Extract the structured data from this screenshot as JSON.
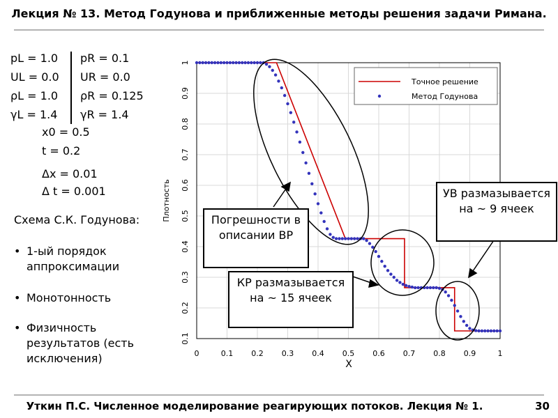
{
  "slide": {
    "title": "Лекция № 13. Метод Годунова и приближенные методы решения задачи Римана.",
    "footer": "Уткин П.С. Численное моделирование реагирующих потоков. Лекция № 1.",
    "page_number": "30"
  },
  "params": {
    "left": [
      "pL = 1.0",
      "UL = 0.0",
      "ρL = 1.0",
      "γL = 1.4"
    ],
    "right": [
      "pR = 0.1",
      "UR = 0.0",
      "ρR = 0.125",
      "γR = 1.4"
    ],
    "x0": "x0 = 0.5",
    "t": "t = 0.2",
    "dx": "Δx = 0.01",
    "dt": "Δ t = 0.001"
  },
  "scheme": {
    "title": "Схема С.К. Годунова:",
    "bullets": [
      "1-ый порядок аппроксимации",
      "Монотонность",
      "Физичность результатов (есть исключения)"
    ]
  },
  "callouts": {
    "rarefaction": "Погрешности в описании ВР",
    "contact": "КР размазывается на ~ 15 ячеек",
    "shock": "УВ размазывается на ~ 9 ячеек"
  },
  "colors": {
    "exact": "#cc0000",
    "godunov": "#3333bb",
    "rule": "#b3b3b3"
  },
  "chart_data": {
    "type": "line",
    "xlabel": "X",
    "ylabel": "Плотность",
    "xlim": [
      0,
      1
    ],
    "ylim": [
      0.1,
      1
    ],
    "x_ticks": [
      "0",
      "0.1",
      "0.2",
      "0.3",
      "0.4",
      "0.5",
      "0.6",
      "0.7",
      "0.8",
      "0.9",
      "1"
    ],
    "y_ticks": [
      "0.1",
      "0.2",
      "0.3",
      "0.4",
      "0.5",
      "0.6",
      "0.7",
      "0.8",
      "0.9",
      "1"
    ],
    "grid": true,
    "legend_position": "top-right",
    "series": [
      {
        "name": "Точное решение",
        "style": "line",
        "x": [
          0,
          0.263,
          0.49,
          0.685,
          0.685,
          0.85,
          0.85,
          1
        ],
        "y": [
          1.0,
          1.0,
          0.426,
          0.426,
          0.266,
          0.266,
          0.125,
          0.125
        ]
      },
      {
        "name": "Метод Годунова",
        "style": "markers",
        "x": [
          0,
          0.01,
          0.02,
          0.03,
          0.04,
          0.05,
          0.06,
          0.07,
          0.08,
          0.09,
          0.1,
          0.11,
          0.12,
          0.13,
          0.14,
          0.15,
          0.16,
          0.17,
          0.18,
          0.19,
          0.2,
          0.21,
          0.22,
          0.23,
          0.24,
          0.25,
          0.26,
          0.27,
          0.28,
          0.29,
          0.3,
          0.31,
          0.32,
          0.33,
          0.34,
          0.35,
          0.36,
          0.37,
          0.38,
          0.39,
          0.4,
          0.41,
          0.42,
          0.43,
          0.44,
          0.45,
          0.46,
          0.47,
          0.48,
          0.49,
          0.5,
          0.51,
          0.52,
          0.53,
          0.54,
          0.55,
          0.56,
          0.57,
          0.58,
          0.59,
          0.6,
          0.61,
          0.62,
          0.63,
          0.64,
          0.65,
          0.66,
          0.67,
          0.68,
          0.69,
          0.7,
          0.71,
          0.72,
          0.73,
          0.74,
          0.75,
          0.76,
          0.77,
          0.78,
          0.79,
          0.8,
          0.81,
          0.82,
          0.83,
          0.84,
          0.85,
          0.86,
          0.87,
          0.88,
          0.89,
          0.9,
          0.91,
          0.92,
          0.93,
          0.94,
          0.95,
          0.96,
          0.97,
          0.98,
          0.99,
          1.0
        ],
        "y": [
          1.0,
          1.0,
          1.0,
          1.0,
          1.0,
          1.0,
          1.0,
          1.0,
          1.0,
          1.0,
          1.0,
          1.0,
          1.0,
          1.0,
          1.0,
          1.0,
          1.0,
          1.0,
          1.0,
          1.0,
          1.0,
          1.0,
          1.0,
          0.995,
          0.987,
          0.975,
          0.96,
          0.94,
          0.918,
          0.893,
          0.866,
          0.837,
          0.806,
          0.774,
          0.741,
          0.707,
          0.673,
          0.639,
          0.605,
          0.572,
          0.54,
          0.51,
          0.482,
          0.458,
          0.44,
          0.43,
          0.426,
          0.426,
          0.426,
          0.426,
          0.426,
          0.426,
          0.426,
          0.426,
          0.426,
          0.426,
          0.42,
          0.41,
          0.398,
          0.384,
          0.368,
          0.352,
          0.336,
          0.322,
          0.31,
          0.3,
          0.29,
          0.283,
          0.277,
          0.273,
          0.27,
          0.268,
          0.266,
          0.266,
          0.266,
          0.266,
          0.266,
          0.266,
          0.266,
          0.266,
          0.264,
          0.26,
          0.252,
          0.24,
          0.225,
          0.208,
          0.19,
          0.172,
          0.156,
          0.143,
          0.133,
          0.128,
          0.126,
          0.125,
          0.125,
          0.125,
          0.125,
          0.125,
          0.125,
          0.125,
          0.125
        ]
      }
    ]
  }
}
